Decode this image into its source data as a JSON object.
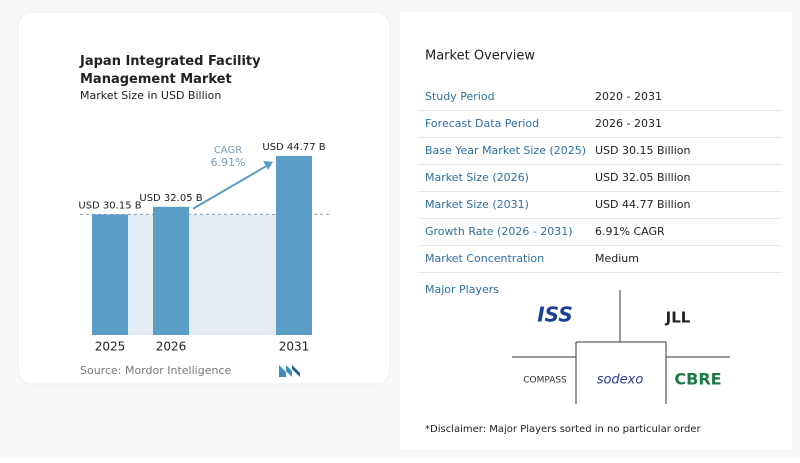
{
  "chart_data": {
    "type": "bar",
    "title": "Japan Integrated Facility Management Market",
    "subtitle": "Market Size in USD Billion",
    "categories": [
      "2025",
      "2026",
      "2031"
    ],
    "values": [
      30.15,
      32.05,
      44.77
    ],
    "value_labels": [
      "USD 30.15 B",
      "USD 32.05 B",
      "USD 44.77 B"
    ],
    "color": "#5b9dc6",
    "annotation": {
      "label": "CAGR",
      "value": "6.91%"
    },
    "source": "Source: Mordor Intelligence"
  },
  "overview": {
    "title": "Market Overview",
    "rows": [
      [
        "Study Period",
        "2020 - 2031"
      ],
      [
        "Forecast Data Period",
        "2026 - 2031"
      ],
      [
        "Base Year Market Size (2025)",
        "USD 30.15 Billion"
      ],
      [
        "Market Size (2026)",
        "USD 32.05 Billion"
      ],
      [
        "Market Size (2031)",
        "USD 44.77 Billion"
      ],
      [
        "Growth Rate (2026 - 2031)",
        "6.91% CAGR"
      ],
      [
        "Market Concentration",
        "Medium"
      ]
    ],
    "players_title": "Major Players",
    "players": [
      "ISS",
      "JLL",
      "COMPASS",
      "sodexo",
      "CBRE"
    ],
    "disclaimer": "*Disclaimer: Major Players sorted in no particular order"
  }
}
